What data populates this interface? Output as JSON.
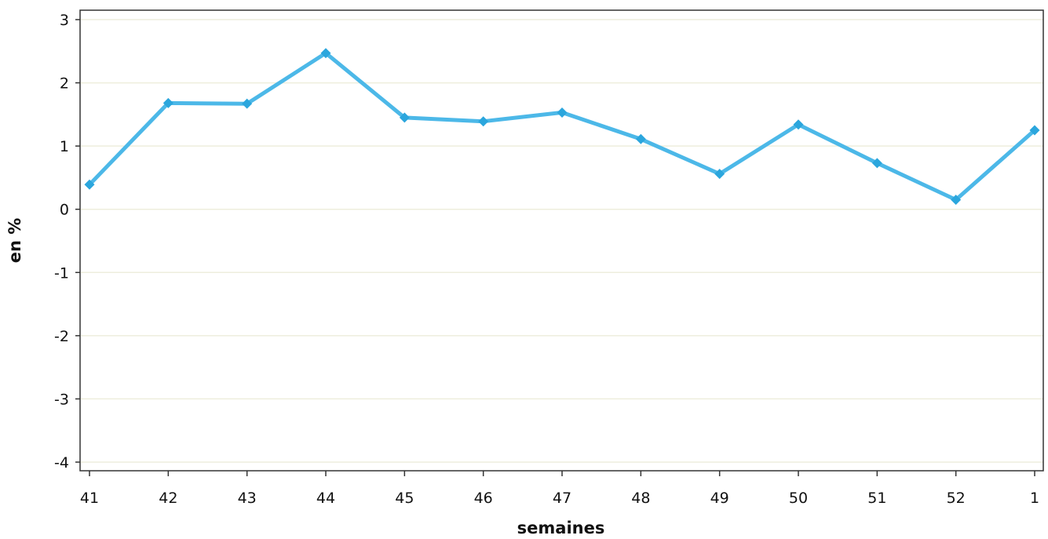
{
  "chart_data": {
    "type": "line",
    "title": "",
    "xlabel": "semaines",
    "ylabel": "en %",
    "categories": [
      "41",
      "42",
      "43",
      "44",
      "45",
      "46",
      "47",
      "48",
      "49",
      "50",
      "51",
      "52",
      "1"
    ],
    "series": [
      {
        "values": [
          0.39,
          1.68,
          1.67,
          2.47,
          1.45,
          1.39,
          1.53,
          1.11,
          0.56,
          1.34,
          0.73,
          0.15,
          1.25
        ],
        "color": "#4cb8e8",
        "marker_color": "#2ba6dd",
        "marker": "diamond"
      }
    ],
    "ylim": [
      -4,
      3
    ],
    "yticks": [
      -4,
      -3,
      -2,
      -1,
      0,
      1,
      2,
      3
    ],
    "grid": true,
    "grid_color": "#eeeedd",
    "legend": "none"
  }
}
